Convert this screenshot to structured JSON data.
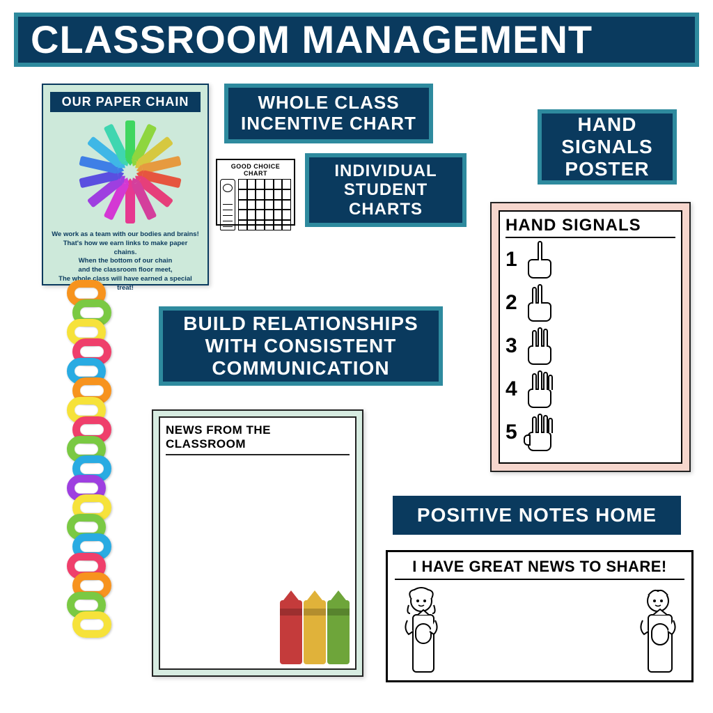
{
  "title": "CLASSROOM MANAGEMENT",
  "colors": {
    "navy": "#0a3a5e",
    "teal_border": "#2e8a9e",
    "white": "#ffffff",
    "mint": "#cde9da",
    "mint2": "#d7ece1",
    "peach": "#f6d6cd",
    "black": "#000000"
  },
  "typography": {
    "title_fontsize": 56,
    "label_fontsize_lg": 28,
    "label_fontsize_md": 26,
    "label_fontsize_sm": 24,
    "font_weight": 900
  },
  "labels": {
    "incentive": "WHOLE CLASS\nINCENTIVE CHART",
    "individual": "INDIVIDUAL\nSTUDENT\nCHARTS",
    "hand": "HAND\nSIGNALS\nPOSTER",
    "build": "BUILD RELATIONSHIPS\nWITH CONSISTENT\nCOMMUNICATION",
    "positive": "POSITIVE NOTES HOME"
  },
  "paper_chain_poster": {
    "title": "OUR PAPER CHAIN",
    "poem": "We work as a team with our bodies and brains!\nThat's how we earn links to make paper chains.\nWhen the bottom of our chain\nand the classroom floor meet,\nThe whole class will have earned a special treat!",
    "crayon_colors": [
      "#e63990",
      "#d438d4",
      "#9e3fe0",
      "#5a4fe0",
      "#3f7fe6",
      "#3fb7e6",
      "#3fd6b0",
      "#3fd660",
      "#8ed63f",
      "#d6c83f",
      "#e69a3f",
      "#e6553f",
      "#e63f7a",
      "#d43f9c"
    ]
  },
  "good_choice": {
    "title": "GOOD CHOICE CHART",
    "grid_cols": 6,
    "grid_rows": 5
  },
  "chain_links": {
    "colors": [
      "#f7931e",
      "#7ac943",
      "#f6e23a",
      "#ef3f6b",
      "#29abe2",
      "#f7931e",
      "#f6e23a",
      "#ef3f6b",
      "#7ac943",
      "#29abe2",
      "#9e3fe0",
      "#f6e23a",
      "#7ac943",
      "#29abe2",
      "#ef3f6b",
      "#f7931e",
      "#7ac943",
      "#f6e23a"
    ]
  },
  "news_card": {
    "title": "NEWS FROM THE CLASSROOM",
    "crayon_colors": [
      "#c43b3b",
      "#e0b23a",
      "#6ea53a"
    ]
  },
  "hand_signals": {
    "title": "HAND SIGNALS",
    "rows": [
      {
        "num": "1",
        "fingers": 1
      },
      {
        "num": "2",
        "fingers": 2
      },
      {
        "num": "3",
        "fingers": 3
      },
      {
        "num": "4",
        "fingers": 4
      },
      {
        "num": "5",
        "fingers": 5
      }
    ]
  },
  "great_news": {
    "title": "I HAVE GREAT NEWS TO SHARE!"
  }
}
